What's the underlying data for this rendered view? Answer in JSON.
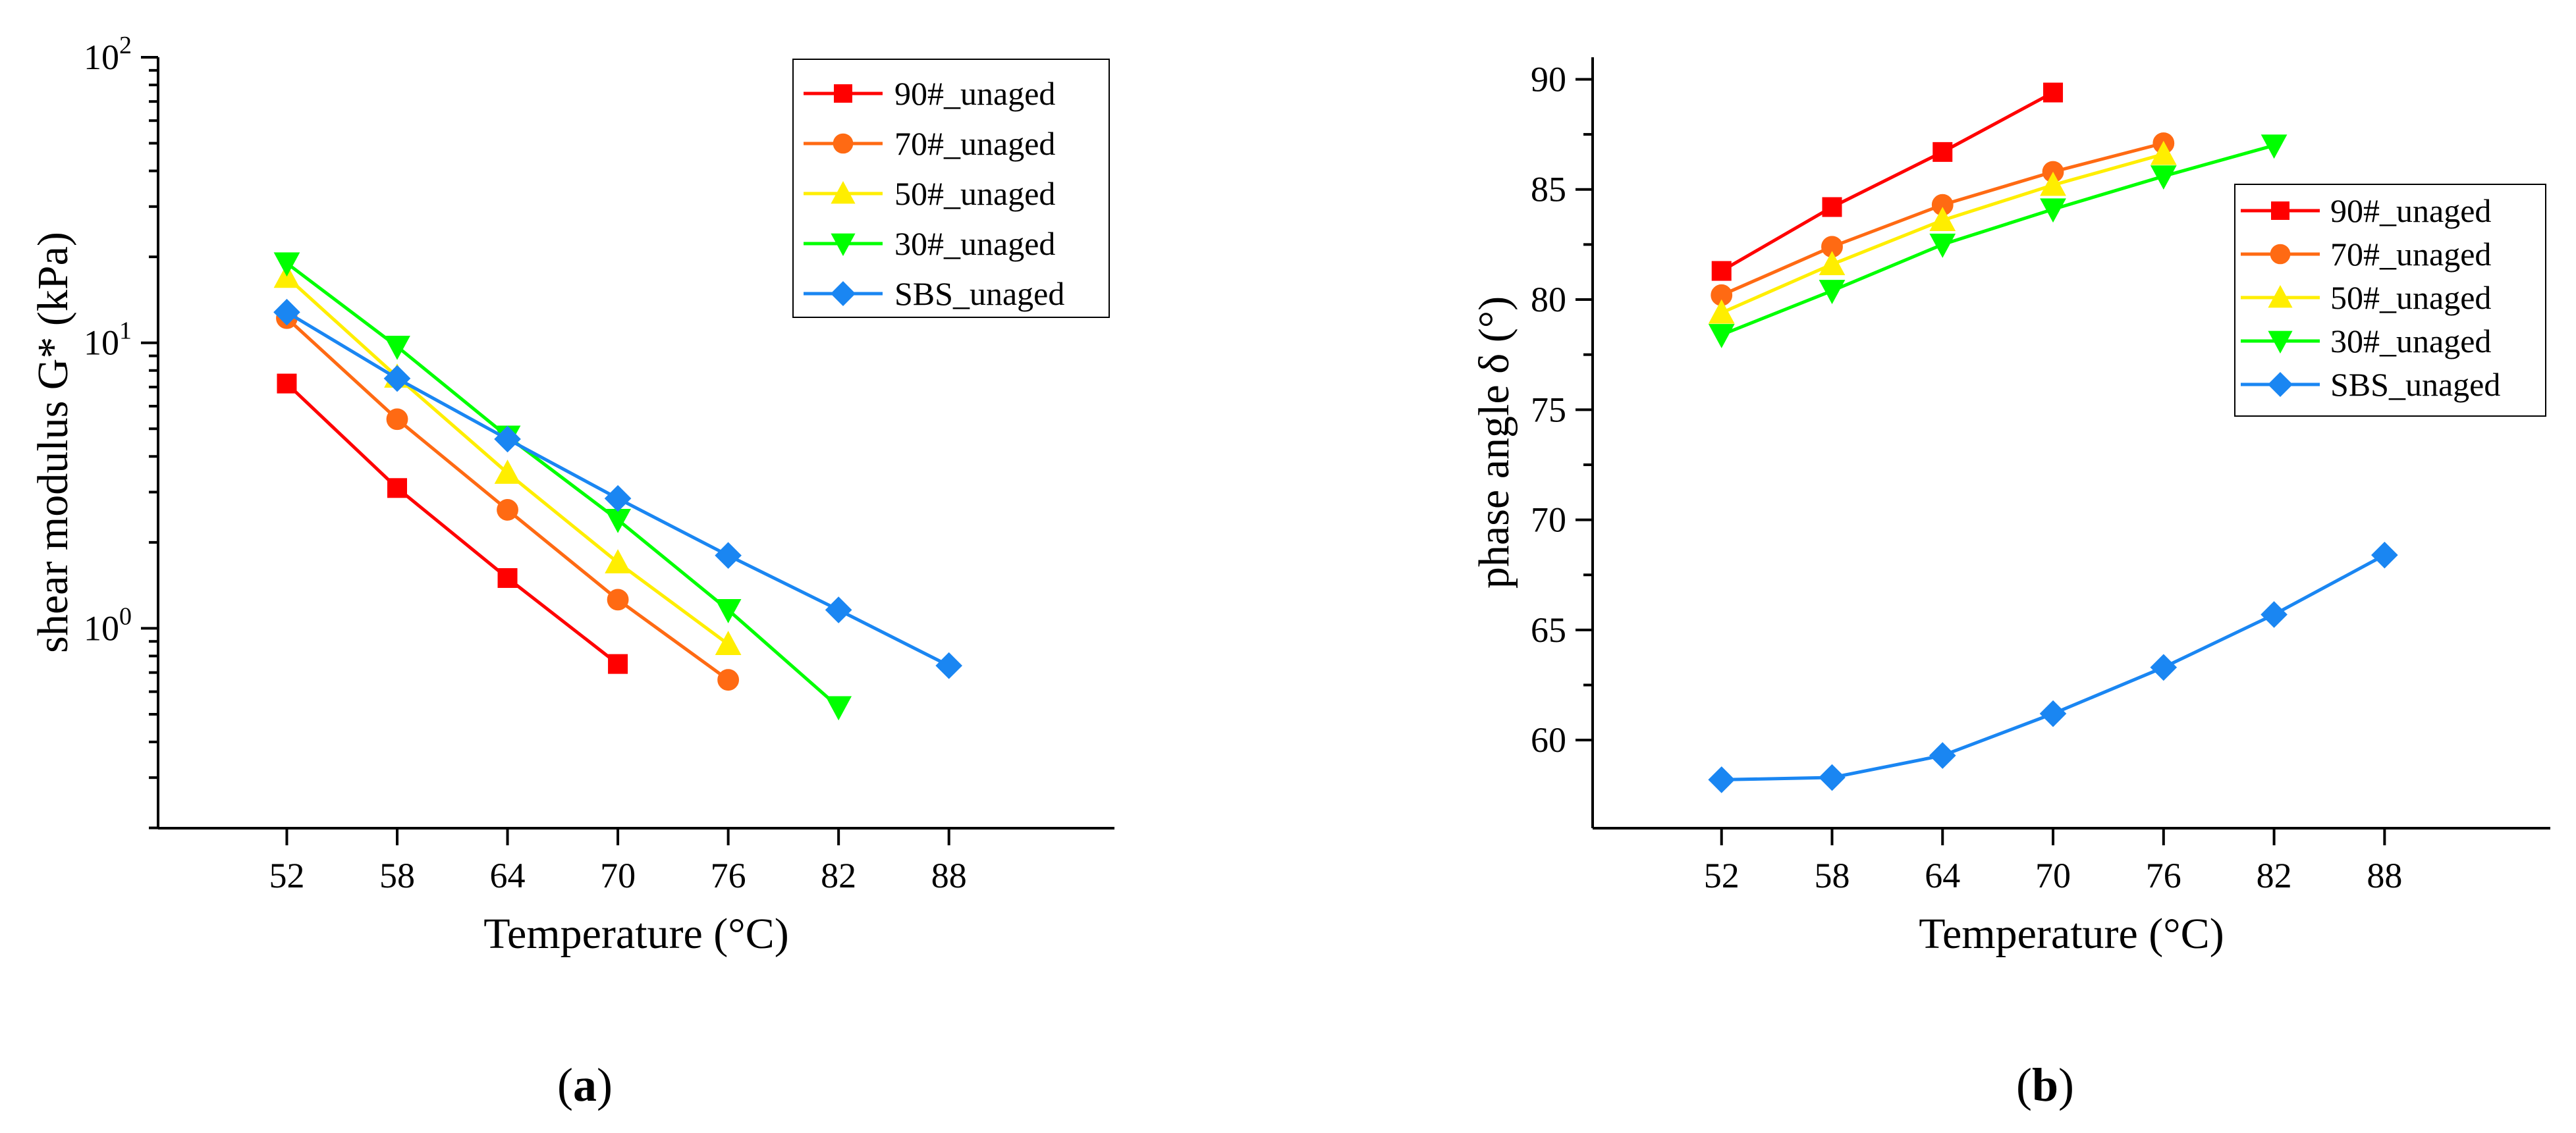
{
  "chart_data": [
    {
      "id": "a",
      "type": "line",
      "panel_label": "a",
      "xlabel": "Temperature (°C)",
      "ylabel": "shear modulus G* (kPa)",
      "yscale": "log",
      "xlim": [
        45,
        97
      ],
      "ylim_log10": [
        -0.7,
        2
      ],
      "x_ticks": [
        52,
        58,
        64,
        70,
        76,
        82,
        88
      ],
      "y_ticks": [
        {
          "value": 1,
          "base": "10",
          "exp": "0"
        },
        {
          "value": 10,
          "base": "10",
          "exp": "1"
        },
        {
          "value": 100,
          "base": "10",
          "exp": "2"
        }
      ],
      "legend_position": "top-right",
      "series": [
        {
          "name": "90#_unaged",
          "color": "#ff0000",
          "marker": "square",
          "x": [
            52,
            58,
            64,
            70
          ],
          "y": [
            7.2,
            3.1,
            1.5,
            0.75
          ]
        },
        {
          "name": "70#_unaged",
          "color": "#ff6a13",
          "marker": "circle",
          "x": [
            52,
            58,
            64,
            70,
            76
          ],
          "y": [
            12.2,
            5.4,
            2.6,
            1.26,
            0.66
          ]
        },
        {
          "name": "50#_unaged",
          "color": "#ffee00",
          "marker": "triangle-up",
          "x": [
            52,
            58,
            64,
            70,
            76
          ],
          "y": [
            17,
            7.6,
            3.5,
            1.7,
            0.88
          ]
        },
        {
          "name": "30#_unaged",
          "color": "#00ff00",
          "marker": "triangle-down",
          "x": [
            52,
            58,
            64,
            70,
            76,
            82
          ],
          "y": [
            19,
            9.7,
            4.7,
            2.4,
            1.16,
            0.53
          ]
        },
        {
          "name": "SBS_unaged",
          "color": "#1a86f2",
          "marker": "diamond",
          "x": [
            52,
            58,
            64,
            70,
            76,
            82,
            88
          ],
          "y": [
            12.8,
            7.5,
            4.6,
            2.85,
            1.8,
            1.16,
            0.74
          ]
        }
      ]
    },
    {
      "id": "b",
      "type": "line",
      "panel_label": "b",
      "xlabel": "Temperature (°C)",
      "ylabel": "phase angle δ (°)",
      "yscale": "linear",
      "xlim": [
        45,
        97
      ],
      "ylim": [
        56,
        91
      ],
      "x_ticks": [
        52,
        58,
        64,
        70,
        76,
        82,
        88
      ],
      "y_ticks": [
        60,
        65,
        70,
        75,
        80,
        85,
        90
      ],
      "legend_position": "right",
      "series": [
        {
          "name": "90#_unaged",
          "color": "#ff0000",
          "marker": "square",
          "x": [
            52,
            58,
            64,
            70
          ],
          "y": [
            81.3,
            84.2,
            86.7,
            89.4
          ]
        },
        {
          "name": "70#_unaged",
          "color": "#ff6a13",
          "marker": "circle",
          "x": [
            52,
            58,
            64,
            70,
            76
          ],
          "y": [
            80.2,
            82.4,
            84.3,
            85.8,
            87.1
          ]
        },
        {
          "name": "50#_unaged",
          "color": "#ffee00",
          "marker": "triangle-up",
          "x": [
            52,
            58,
            64,
            70,
            76
          ],
          "y": [
            79.4,
            81.6,
            83.6,
            85.2,
            86.6
          ]
        },
        {
          "name": "30#_unaged",
          "color": "#00ff00",
          "marker": "triangle-down",
          "x": [
            52,
            58,
            64,
            70,
            76,
            82
          ],
          "y": [
            78.4,
            80.4,
            82.5,
            84.1,
            85.6,
            87.0
          ]
        },
        {
          "name": "SBS_unaged",
          "color": "#1a86f2",
          "marker": "diamond",
          "x": [
            52,
            58,
            64,
            70,
            76,
            82,
            88
          ],
          "y": [
            58.2,
            58.3,
            59.3,
            61.2,
            63.3,
            65.7,
            68.4
          ]
        }
      ]
    }
  ]
}
